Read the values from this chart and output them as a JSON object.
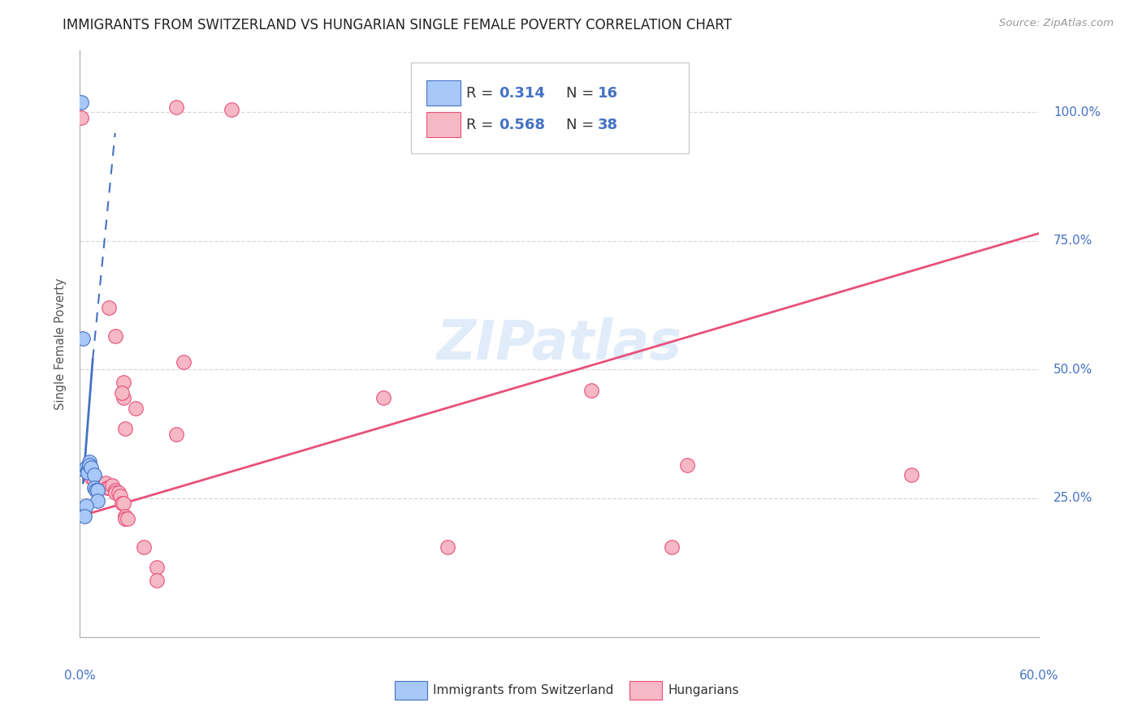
{
  "title": "IMMIGRANTS FROM SWITZERLAND VS HUNGARIAN SINGLE FEMALE POVERTY CORRELATION CHART",
  "source": "Source: ZipAtlas.com",
  "ylabel": "Single Female Poverty",
  "blue_color": "#a8c8f8",
  "blue_line_color": "#4472c4",
  "pink_color": "#f5b8c4",
  "pink_line_color": "#e8507a",
  "watermark": "ZIPatlas",
  "xlim": [
    0.0,
    0.6
  ],
  "ylim": [
    -0.02,
    1.12
  ],
  "ytick_values": [
    0.25,
    0.5,
    0.75,
    1.0
  ],
  "ytick_labels": [
    "25.0%",
    "50.0%",
    "75.0%",
    "100.0%"
  ],
  "xtick_values": [
    0.0,
    0.1,
    0.2,
    0.3,
    0.4,
    0.5,
    0.6
  ],
  "blue_dots": [
    [
      0.001,
      1.02
    ],
    [
      0.002,
      0.56
    ],
    [
      0.003,
      0.305
    ],
    [
      0.004,
      0.31
    ],
    [
      0.005,
      0.305
    ],
    [
      0.005,
      0.3
    ],
    [
      0.006,
      0.32
    ],
    [
      0.006,
      0.315
    ],
    [
      0.007,
      0.31
    ],
    [
      0.009,
      0.295
    ],
    [
      0.009,
      0.27
    ],
    [
      0.01,
      0.265
    ],
    [
      0.011,
      0.265
    ],
    [
      0.011,
      0.245
    ],
    [
      0.004,
      0.235
    ],
    [
      0.003,
      0.215
    ]
  ],
  "pink_dots": [
    [
      0.001,
      0.99
    ],
    [
      0.06,
      1.01
    ],
    [
      0.095,
      1.005
    ],
    [
      0.018,
      0.62
    ],
    [
      0.022,
      0.565
    ],
    [
      0.065,
      0.515
    ],
    [
      0.32,
      0.46
    ],
    [
      0.027,
      0.475
    ],
    [
      0.027,
      0.445
    ],
    [
      0.026,
      0.455
    ],
    [
      0.19,
      0.445
    ],
    [
      0.035,
      0.425
    ],
    [
      0.028,
      0.385
    ],
    [
      0.06,
      0.375
    ],
    [
      0.38,
      0.315
    ],
    [
      0.52,
      0.295
    ],
    [
      0.007,
      0.29
    ],
    [
      0.009,
      0.285
    ],
    [
      0.012,
      0.28
    ],
    [
      0.015,
      0.275
    ],
    [
      0.016,
      0.28
    ],
    [
      0.017,
      0.27
    ],
    [
      0.018,
      0.27
    ],
    [
      0.02,
      0.275
    ],
    [
      0.022,
      0.265
    ],
    [
      0.022,
      0.26
    ],
    [
      0.024,
      0.26
    ],
    [
      0.025,
      0.255
    ],
    [
      0.026,
      0.24
    ],
    [
      0.027,
      0.24
    ],
    [
      0.028,
      0.215
    ],
    [
      0.028,
      0.21
    ],
    [
      0.03,
      0.21
    ],
    [
      0.04,
      0.155
    ],
    [
      0.23,
      0.155
    ],
    [
      0.37,
      0.155
    ],
    [
      0.048,
      0.115
    ],
    [
      0.048,
      0.09
    ]
  ],
  "blue_trendline_solid": [
    [
      0.002,
      0.28
    ],
    [
      0.008,
      0.52
    ]
  ],
  "blue_trendline_dashed": [
    [
      0.008,
      0.52
    ],
    [
      0.022,
      0.96
    ]
  ],
  "pink_trendline": [
    [
      0.0,
      0.215
    ],
    [
      0.6,
      0.765
    ]
  ],
  "legend_r1": "R = ",
  "legend_v1": "0.314",
  "legend_n1": "N = ",
  "legend_nv1": "16",
  "legend_r2": "R = ",
  "legend_v2": "0.568",
  "legend_n2": "N = ",
  "legend_nv2": "38",
  "legend_label1": "Immigrants from Switzerland",
  "legend_label2": "Hungarians"
}
